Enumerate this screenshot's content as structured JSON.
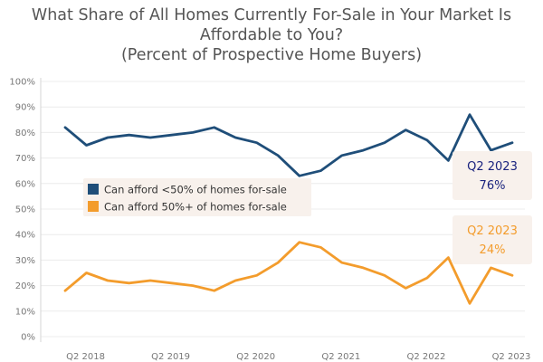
{
  "chart_data": {
    "type": "line",
    "title": "What Share of All Homes Currently For-Sale in Your Market Is Affordable to You?",
    "subtitle": "(Percent of Prospective Home Buyers)",
    "ylim": [
      0,
      100
    ],
    "y_ticks": [
      "0%",
      "10%",
      "20%",
      "30%",
      "40%",
      "50%",
      "60%",
      "70%",
      "80%",
      "90%",
      "100%"
    ],
    "x_tick_labels": [
      {
        "label": "Q2 2018",
        "index": 1
      },
      {
        "label": "Q2 2019",
        "index": 5
      },
      {
        "label": "Q2 2020",
        "index": 9
      },
      {
        "label": "Q2 2021",
        "index": 13
      },
      {
        "label": "Q2 2022",
        "index": 17
      },
      {
        "label": "Q2 2023",
        "index": 21
      }
    ],
    "grid": "horizontal",
    "legend_position": "center-left",
    "series": [
      {
        "name": "Can afford <50% of homes for-sale",
        "color": "#1f4e79",
        "values": [
          82,
          75,
          78,
          79,
          78,
          79,
          80,
          82,
          78,
          76,
          71,
          63,
          65,
          71,
          73,
          76,
          81,
          77,
          69,
          87,
          73,
          76
        ]
      },
      {
        "name": "Can afford 50%+ of homes for-sale",
        "color": "#f39c2c",
        "values": [
          18,
          25,
          22,
          21,
          22,
          21,
          20,
          18,
          22,
          24,
          29,
          37,
          35,
          29,
          27,
          24,
          19,
          23,
          31,
          13,
          27,
          24
        ]
      }
    ],
    "annotations": [
      {
        "series": 0,
        "period": "Q2 2023",
        "value": "76%",
        "color": "#1a237e"
      },
      {
        "series": 1,
        "period": "Q2 2023",
        "value": "24%",
        "color": "#f39c2c"
      }
    ]
  }
}
